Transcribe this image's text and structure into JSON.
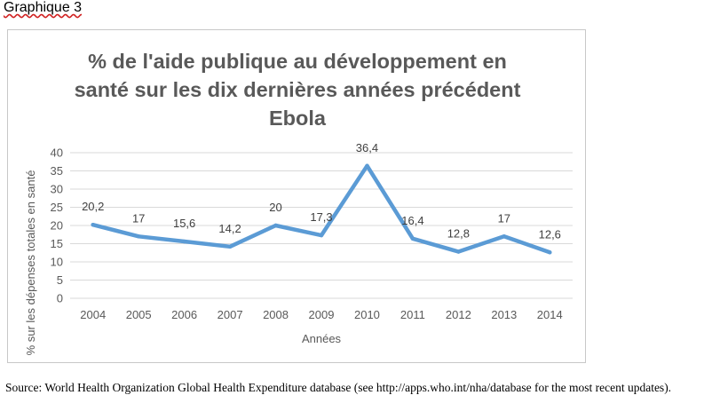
{
  "document": {
    "heading": "Graphique 3",
    "source": "Source: World Health Organization Global Health Expenditure database (see http://apps.who.int/nha/database for the most recent updates)."
  },
  "chart_data": {
    "type": "line",
    "title_lines": [
      "% de l'aide publique au développement en",
      "santé sur les dix dernières années précédent",
      "Ebola"
    ],
    "xlabel": "Années",
    "ylabel": "% sur les dépenses totales en santé",
    "categories": [
      "2004",
      "2005",
      "2006",
      "2007",
      "2008",
      "2009",
      "2010",
      "2011",
      "2012",
      "2013",
      "2014"
    ],
    "values": [
      20.2,
      17,
      15.6,
      14.2,
      20,
      17.3,
      36.4,
      16.4,
      12.8,
      17,
      12.6
    ],
    "data_labels": [
      "20,2",
      "17",
      "15,6",
      "14,2",
      "20",
      "17,3",
      "36,4",
      "16,4",
      "12,8",
      "17",
      "12,6"
    ],
    "y_ticks": [
      "0",
      "5",
      "10",
      "15",
      "20",
      "25",
      "30",
      "35",
      "40"
    ],
    "ylim": [
      0,
      40
    ],
    "grid": true,
    "legend": "none",
    "colors": {
      "line": "#5b9bd5",
      "grid": "#d9d9d9",
      "text": "#595959"
    }
  }
}
